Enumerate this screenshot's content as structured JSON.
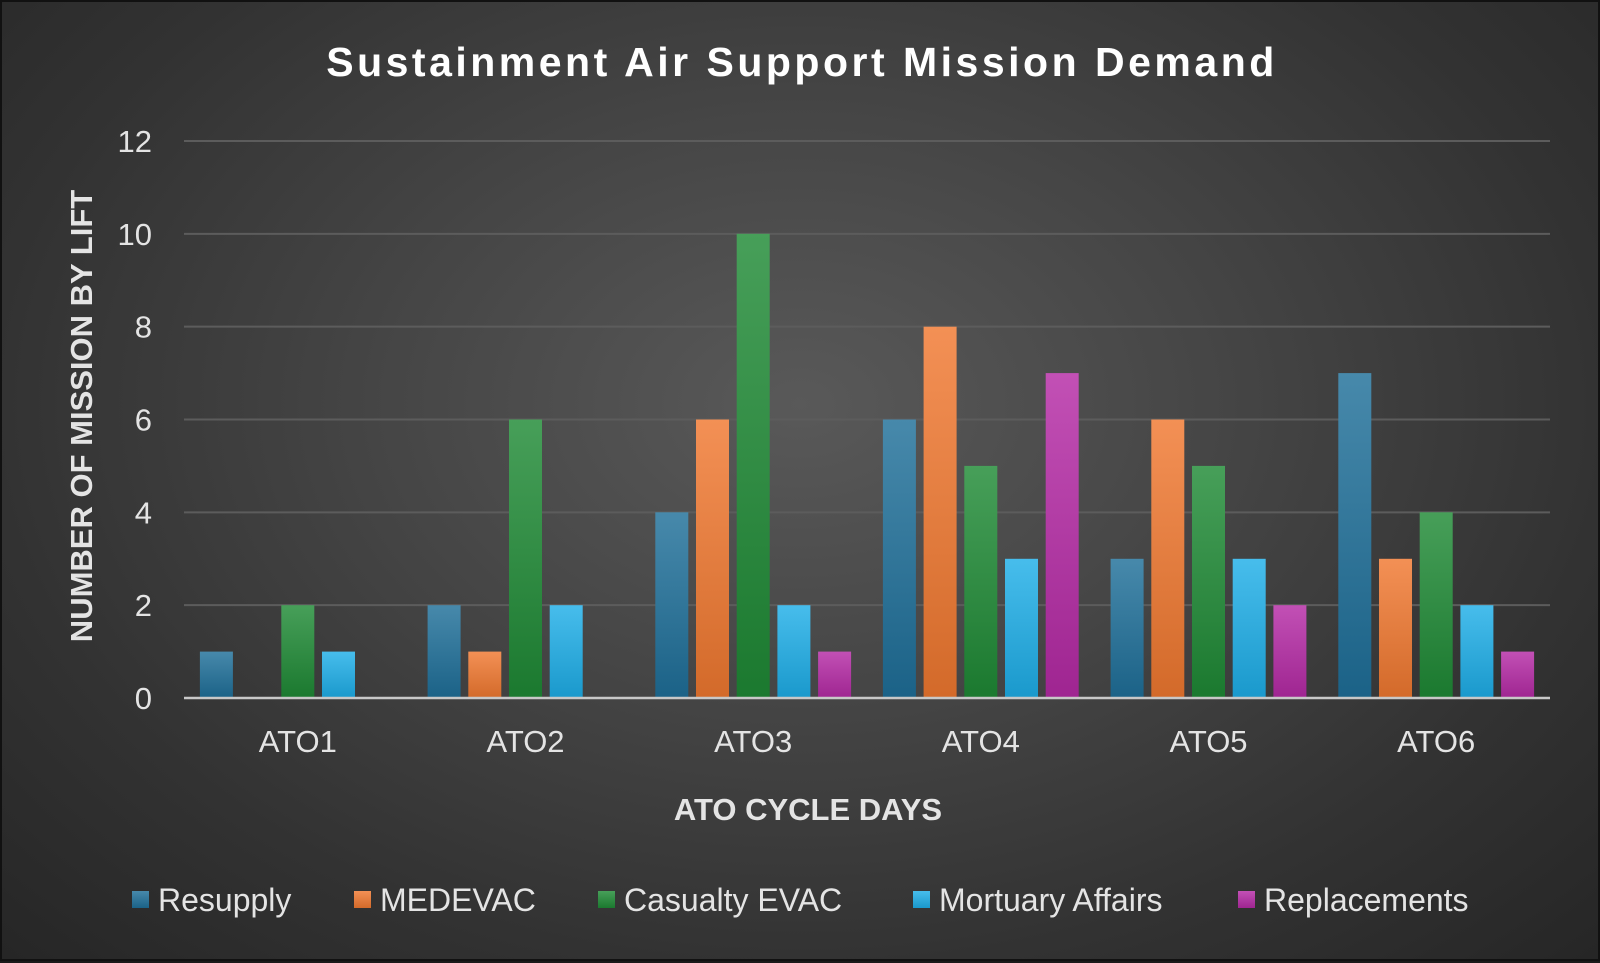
{
  "chart_data": {
    "type": "bar",
    "title": "Sustainment Air Support Mission Demand",
    "xlabel": "ATO CYCLE DAYS",
    "ylabel": "NUMBER OF MISSION BY LIFT",
    "categories": [
      "ATO1",
      "ATO2",
      "ATO3",
      "ATO4",
      "ATO5",
      "ATO6"
    ],
    "ylim": [
      0,
      12
    ],
    "yticks": [
      0,
      2,
      4,
      6,
      8,
      10,
      12
    ],
    "grid": true,
    "legend_position": "bottom",
    "series": [
      {
        "name": "Resupply",
        "color": "#1f6f99",
        "values": [
          1,
          2,
          4,
          6,
          3,
          7
        ]
      },
      {
        "name": "MEDEVAC",
        "color": "#f07830",
        "values": [
          0,
          1,
          6,
          8,
          6,
          3
        ]
      },
      {
        "name": "Casualty EVAC",
        "color": "#1f8a35",
        "values": [
          2,
          6,
          10,
          5,
          5,
          4
        ]
      },
      {
        "name": "Mortuary Affairs",
        "color": "#1eaee8",
        "values": [
          1,
          2,
          2,
          3,
          3,
          2
        ]
      },
      {
        "name": "Replacements",
        "color": "#b52aa5",
        "values": [
          0,
          0,
          1,
          7,
          2,
          1
        ]
      }
    ]
  }
}
